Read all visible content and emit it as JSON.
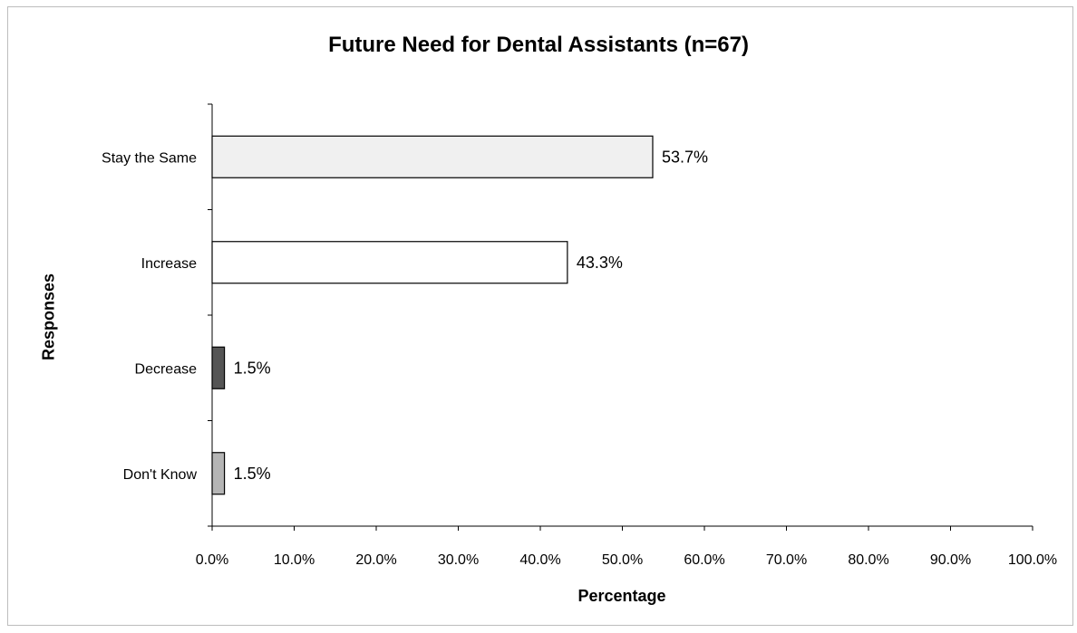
{
  "chart_data": {
    "type": "bar",
    "orientation": "horizontal",
    "title": "Future Need for Dental Assistants (n=67)",
    "xlabel": "Percentage",
    "ylabel": "Responses",
    "categories": [
      "Stay the Same",
      "Increase",
      "Decrease",
      "Don't Know"
    ],
    "values": [
      53.7,
      43.3,
      1.5,
      1.5
    ],
    "value_labels": [
      "53.7%",
      "43.3%",
      "1.5%",
      "1.5%"
    ],
    "bar_colors": [
      "#f0f0f0",
      "#ffffff",
      "#555555",
      "#b5b5b5"
    ],
    "xlim": [
      0,
      100
    ],
    "x_ticks": [
      0,
      10,
      20,
      30,
      40,
      50,
      60,
      70,
      80,
      90,
      100
    ],
    "x_tick_labels": [
      "0.0%",
      "10.0%",
      "20.0%",
      "30.0%",
      "40.0%",
      "50.0%",
      "60.0%",
      "70.0%",
      "80.0%",
      "90.0%",
      "100.0%"
    ],
    "grid": false,
    "legend": "none"
  }
}
